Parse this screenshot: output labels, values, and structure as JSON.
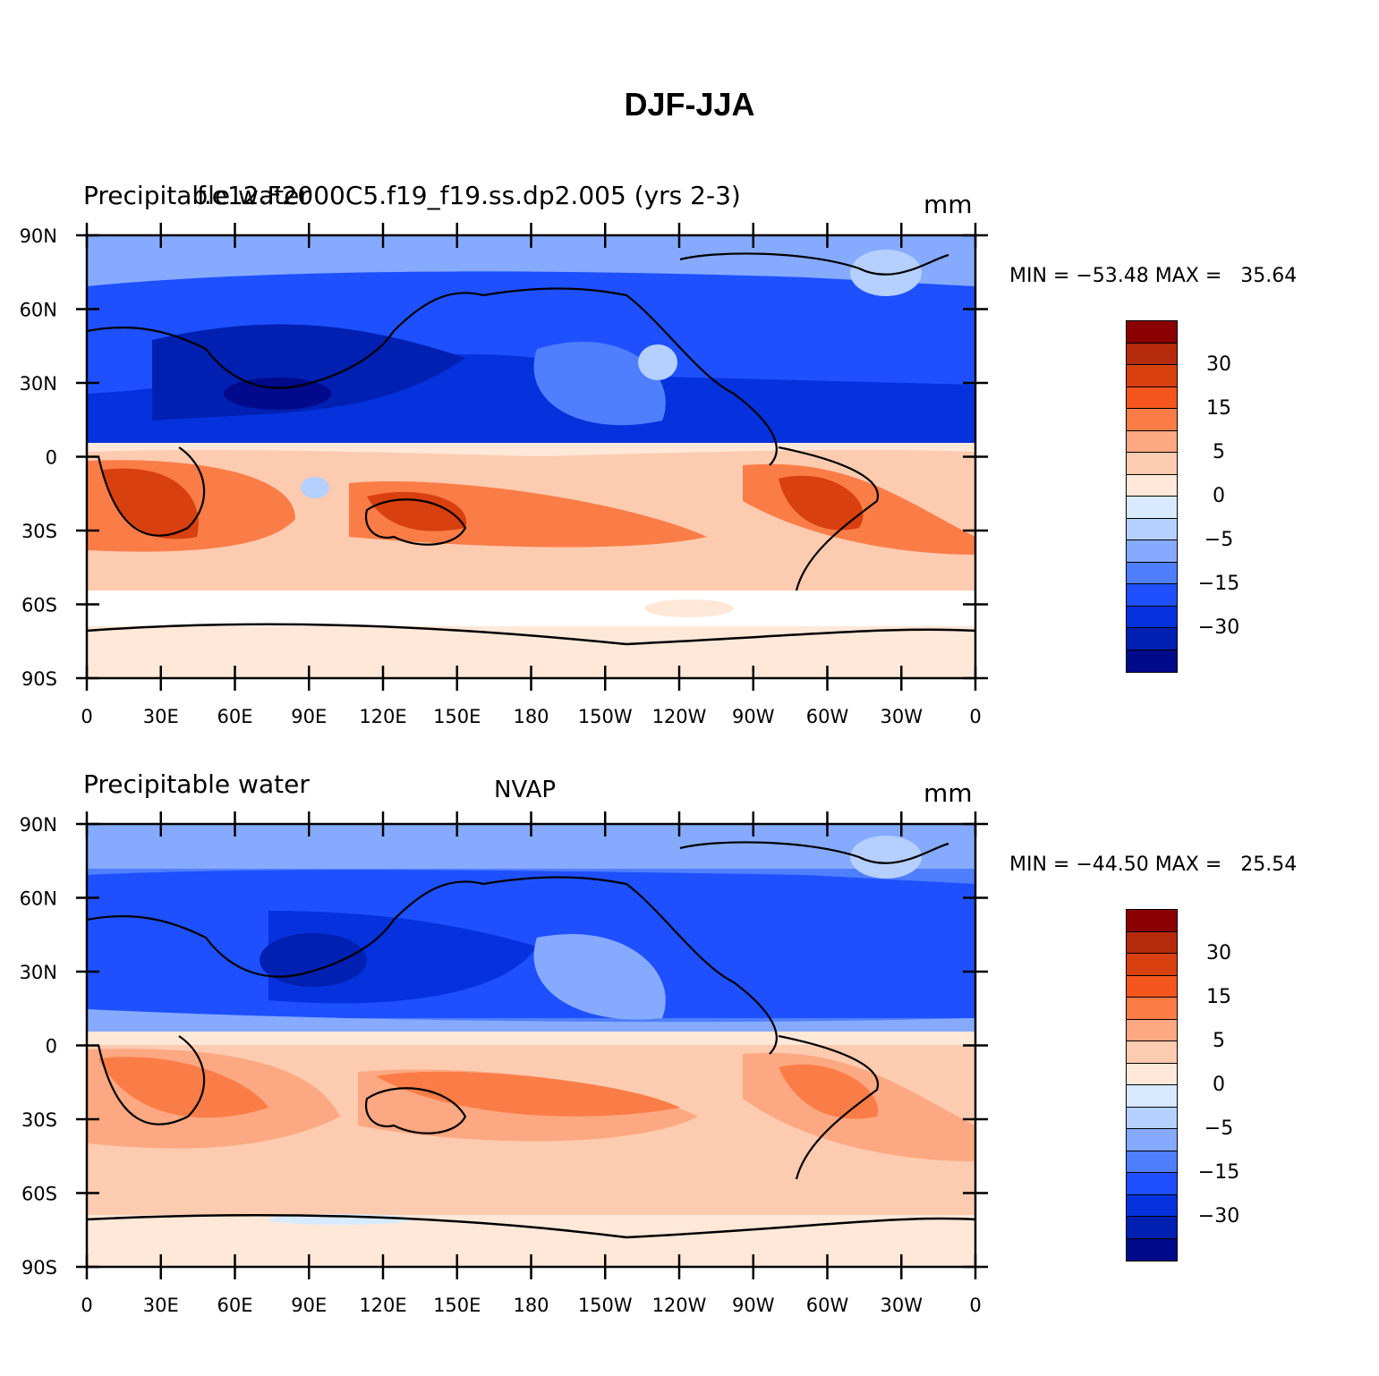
{
  "figure_title": "DJF-JJA",
  "panels": [
    {
      "left_title": "Precipitable water",
      "center_title": "f.e12.F2000C5.f19_f19.ss.dp2.005 (yrs 2-3)",
      "units": "mm",
      "min_max": "MIN = −53.48 MAX =   35.64"
    },
    {
      "left_title": "Precipitable water",
      "center_title": "NVAP",
      "units": "mm",
      "min_max": "MIN = −44.50 MAX =   25.54"
    }
  ],
  "lat_labels": [
    "90N",
    "60N",
    "30N",
    "0",
    "30S",
    "60S",
    "90S"
  ],
  "lon_labels": [
    "0",
    "30E",
    "60E",
    "90E",
    "120E",
    "150E",
    "180",
    "150W",
    "120W",
    "90W",
    "60W",
    "30W",
    "0"
  ],
  "colorbar": {
    "colors": [
      "#8b0000",
      "#b52a0a",
      "#d9400f",
      "#f5561e",
      "#fa7d48",
      "#fca882",
      "#fdcbb0",
      "#ffe8d8",
      "#d8eaff",
      "#b5cfff",
      "#86aaff",
      "#4f7fff",
      "#1e50ff",
      "#0532dd",
      "#0020b2",
      "#000a8a"
    ],
    "tick_labels": [
      "30",
      "15",
      "5",
      "0",
      "−5",
      "−15",
      "−30"
    ]
  }
}
